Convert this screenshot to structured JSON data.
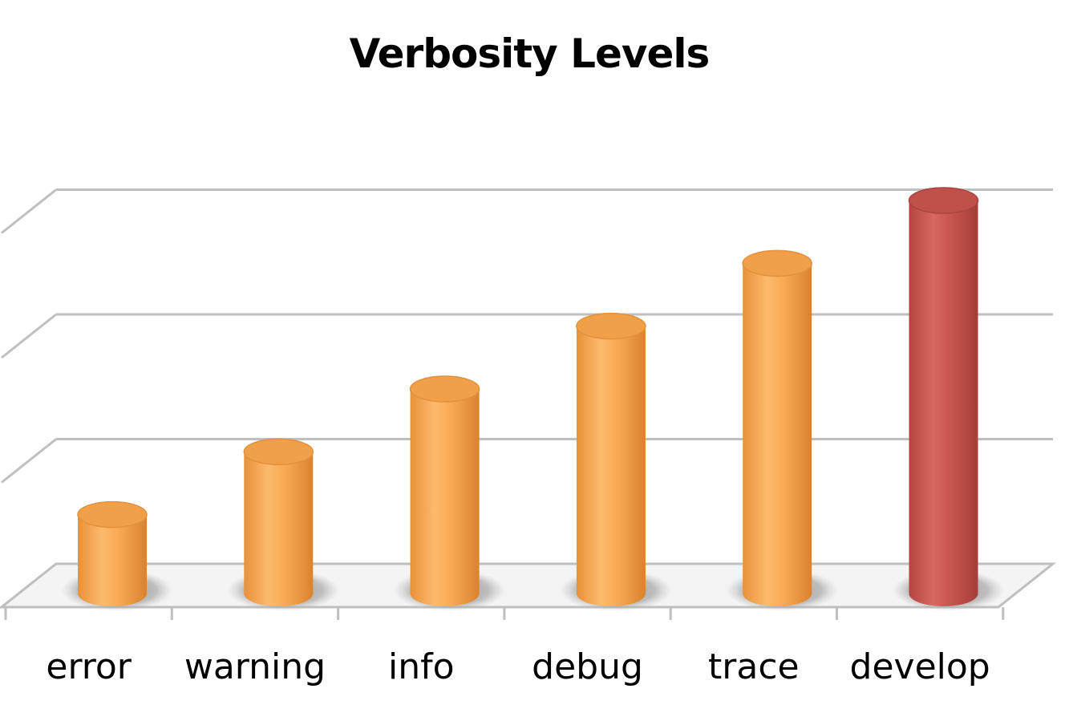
{
  "chart_data": {
    "type": "bar",
    "title": "Verbosity Levels",
    "xlabel": "",
    "ylabel": "",
    "categories": [
      "error",
      "warning",
      "info",
      "debug",
      "trace",
      "develop"
    ],
    "values": [
      1,
      2,
      3,
      4,
      5,
      6
    ],
    "ylim": [
      0,
      6.4
    ],
    "grid": true,
    "legend": "none",
    "style": "3d-cylinder",
    "colors": {
      "bar": "#F9A951",
      "bar_highlight": "#C9554F",
      "gridline": "#BFBFBF",
      "floor": "#F4F4F4"
    },
    "highlighted_category": "develop"
  }
}
